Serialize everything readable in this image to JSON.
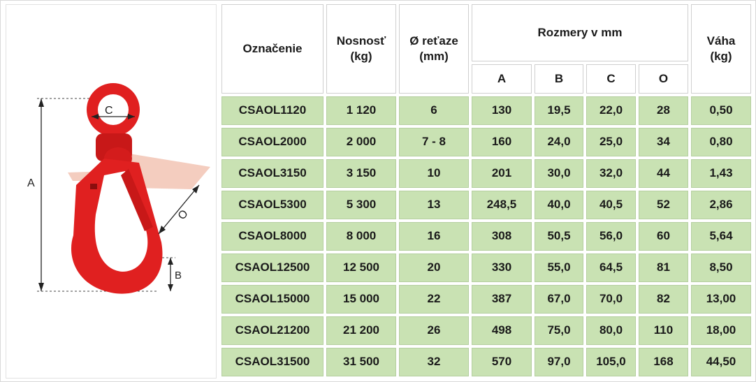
{
  "diagram": {
    "labels": {
      "a": "A",
      "b": "B",
      "c": "C",
      "o": "O"
    }
  },
  "table": {
    "headers": {
      "oznacenie": "Označenie",
      "nosnost": "Nosnosť (kg)",
      "retaze": "Ø reťaze (mm)",
      "rozmery": "Rozmery v mm",
      "vaha": "Váha (kg)",
      "sub": [
        "A",
        "B",
        "C",
        "O"
      ]
    },
    "rows": [
      [
        "CSAOL1120",
        "1 120",
        "6",
        "130",
        "19,5",
        "22,0",
        "28",
        "0,50"
      ],
      [
        "CSAOL2000",
        "2 000",
        "7 - 8",
        "160",
        "24,0",
        "25,0",
        "34",
        "0,80"
      ],
      [
        "CSAOL3150",
        "3 150",
        "10",
        "201",
        "30,0",
        "32,0",
        "44",
        "1,43"
      ],
      [
        "CSAOL5300",
        "5 300",
        "13",
        "248,5",
        "40,0",
        "40,5",
        "52",
        "2,86"
      ],
      [
        "CSAOL8000",
        "8 000",
        "16",
        "308",
        "50,5",
        "56,0",
        "60",
        "5,64"
      ],
      [
        "CSAOL12500",
        "12 500",
        "20",
        "330",
        "55,0",
        "64,5",
        "81",
        "8,50"
      ],
      [
        "CSAOL15000",
        "15 000",
        "22",
        "387",
        "67,0",
        "70,0",
        "82",
        "13,00"
      ],
      [
        "CSAOL21200",
        "21 200",
        "26",
        "498",
        "75,0",
        "80,0",
        "110",
        "18,00"
      ],
      [
        "CSAOL31500",
        "31 500",
        "32",
        "570",
        "97,0",
        "105,0",
        "168",
        "44,50"
      ]
    ]
  },
  "colors": {
    "row_fill": "#c9e2b3",
    "hook_red": "#e02020",
    "latch": "#f2c4b4"
  }
}
